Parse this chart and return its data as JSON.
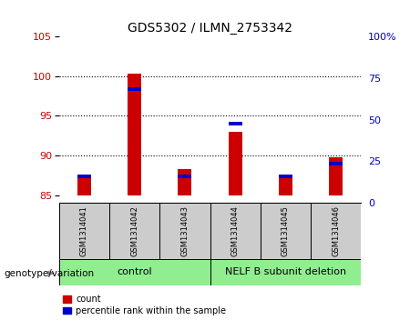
{
  "title": "GDS5302 / ILMN_2753342",
  "samples": [
    "GSM1314041",
    "GSM1314042",
    "GSM1314043",
    "GSM1314044",
    "GSM1314045",
    "GSM1314046"
  ],
  "count_values": [
    87.2,
    100.3,
    88.3,
    93.0,
    87.2,
    89.8
  ],
  "percentile_right": [
    12,
    67,
    12,
    45,
    12,
    20
  ],
  "ylim_left": [
    84,
    105
  ],
  "ylim_right": [
    0,
    100
  ],
  "yticks_left": [
    85,
    90,
    95,
    100,
    105
  ],
  "yticks_right_vals": [
    0,
    25,
    50,
    75,
    100
  ],
  "yticks_right_labels": [
    "0",
    "25",
    "50",
    "75",
    "100%"
  ],
  "ybase": 85,
  "bar_color_red": "#cc0000",
  "bar_color_blue": "#0000cc",
  "bar_width": 0.5,
  "bg_color": "#ffffff",
  "sample_box_color": "#cccccc",
  "group_box_color": "#90ee90",
  "title_fontsize": 10,
  "tick_fontsize": 8,
  "left_tick_color": "#cc0000",
  "right_tick_color": "#0000cc",
  "control_label": "control",
  "deletion_label": "NELF B subunit deletion",
  "genotype_label": "genotype/variation",
  "legend_count": "count",
  "legend_percentile": "percentile rank within the sample"
}
